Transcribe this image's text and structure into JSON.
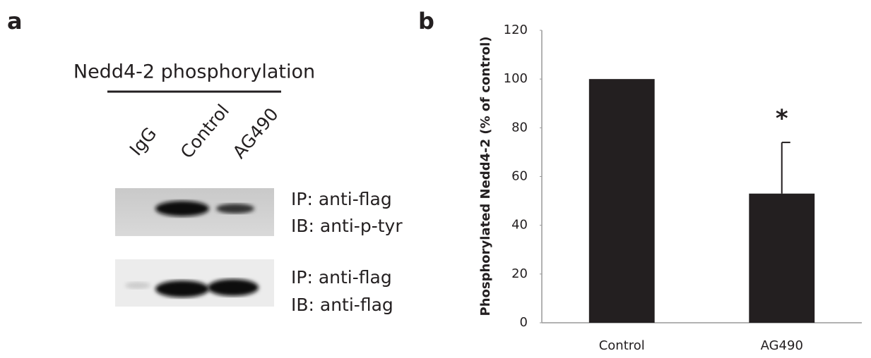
{
  "panel_a": {
    "label": "a",
    "title": "Nedd4-2 phosphorylation",
    "lanes": [
      "IgG",
      "Control",
      "AG490"
    ],
    "blots": [
      {
        "lines": [
          "IP: anti-flag",
          "IB: anti-p-tyr"
        ]
      },
      {
        "lines": [
          "IP: anti-flag",
          "IB: anti-flag"
        ]
      }
    ]
  },
  "chart_data": {
    "type": "bar",
    "panel_label": "b",
    "y_label": "Phosphorylated Nedd4-2 (% of control)",
    "categories": [
      "Control",
      "AG490"
    ],
    "values": [
      100,
      53
    ],
    "errors": [
      null,
      21
    ],
    "annotation": "*",
    "color": "#231f20",
    "ylim": [
      0,
      120
    ],
    "yticks": [
      0,
      20,
      40,
      60,
      80,
      100,
      120
    ],
    "grid": false
  }
}
